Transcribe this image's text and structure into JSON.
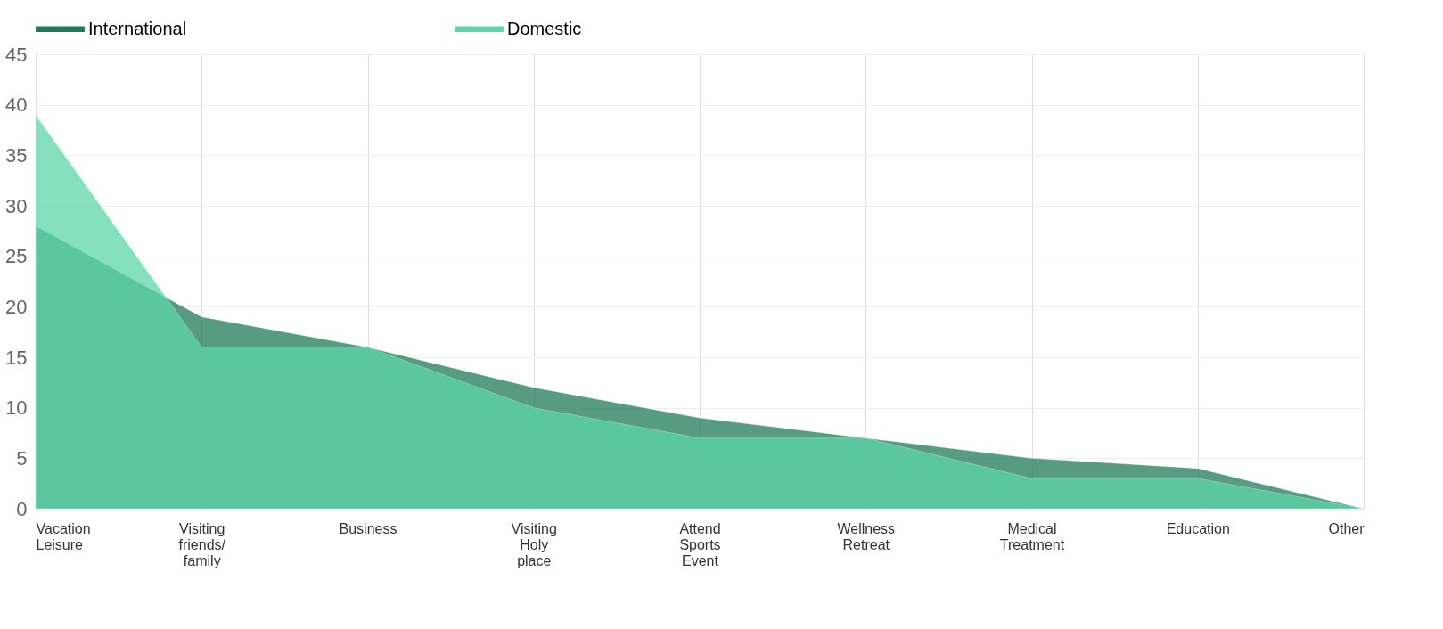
{
  "chart_data": {
    "type": "area",
    "categories": [
      "Vacation\nLeisure",
      "Visiting\nfriends/\nfamily",
      "Business",
      "Visiting\nHoly\nplace",
      "Attend\nSports\nEvent",
      "Wellness\nRetreat",
      "Medical\nTreatment",
      "Education",
      "Other"
    ],
    "series": [
      {
        "name": "International",
        "color": "#1f7a5a",
        "values": [
          28,
          19,
          16,
          12,
          9,
          7,
          5,
          4,
          0
        ]
      },
      {
        "name": "Domestic",
        "color": "#5dd6a8",
        "values": [
          39,
          16,
          16,
          10,
          7,
          7,
          3,
          3,
          0
        ]
      }
    ],
    "ylim": [
      0,
      45
    ],
    "yticks": [
      0,
      5,
      10,
      15,
      20,
      25,
      30,
      35,
      40,
      45
    ],
    "grid": true,
    "legend": "top"
  }
}
